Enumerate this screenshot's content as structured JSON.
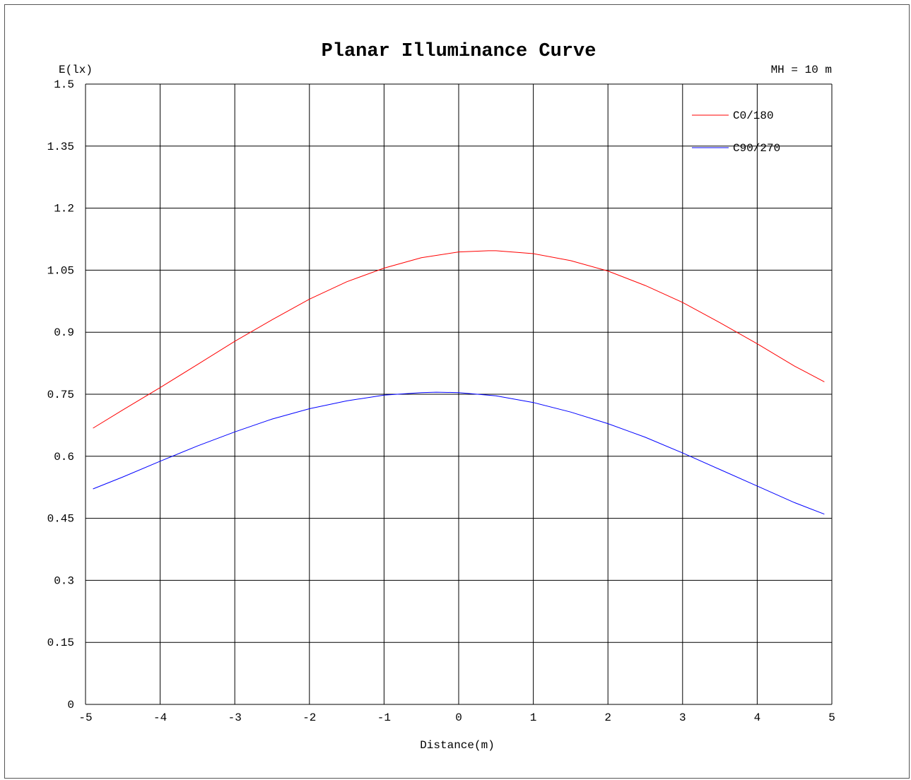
{
  "chart_data": {
    "type": "line",
    "title": "Planar Illuminance Curve",
    "xlabel": "Distance(m)",
    "ylabel": "E(lx)",
    "annotation": "MH = 10 m",
    "xlim": [
      -5,
      5
    ],
    "ylim": [
      0,
      1.5
    ],
    "x_ticks": [
      -5,
      -4,
      -3,
      -2,
      -1,
      0,
      1,
      2,
      3,
      4,
      5
    ],
    "y_ticks": [
      0,
      0.15,
      0.3,
      0.45,
      0.6,
      0.75,
      0.9,
      1.05,
      1.2,
      1.35,
      1.5
    ],
    "x_tick_labels": [
      "-5",
      "-4",
      "-3",
      "-2",
      "-1",
      "0",
      "1",
      "2",
      "3",
      "4",
      "5"
    ],
    "y_tick_labels": [
      "0",
      "0.15",
      "0.3",
      "0.45",
      "0.6",
      "0.75",
      "0.9",
      "1.05",
      "1.2",
      "1.35",
      "1.5"
    ],
    "grid": true,
    "legend_position": "top-right",
    "series": [
      {
        "name": "C0/180",
        "color": "#ff0000",
        "x": [
          -4.9,
          -4.5,
          -4,
          -3.5,
          -3,
          -2.5,
          -2,
          -1.5,
          -1,
          -0.5,
          0,
          0.4,
          0.5,
          1,
          1.5,
          2,
          2.5,
          3,
          3.5,
          4,
          4.5,
          4.9
        ],
        "y": [
          0.668,
          0.712,
          0.766,
          0.822,
          0.878,
          0.93,
          0.98,
          1.022,
          1.055,
          1.08,
          1.094,
          1.097,
          1.097,
          1.09,
          1.073,
          1.048,
          1.013,
          0.972,
          0.923,
          0.872,
          0.818,
          0.78
        ]
      },
      {
        "name": "C90/270",
        "color": "#0000ff",
        "x": [
          -4.9,
          -4.5,
          -4,
          -3.5,
          -3,
          -2.5,
          -2,
          -1.5,
          -1,
          -0.5,
          -0.3,
          0,
          0.5,
          1,
          1.5,
          2,
          2.5,
          3,
          3.5,
          4,
          4.5,
          4.9
        ],
        "y": [
          0.521,
          0.55,
          0.588,
          0.625,
          0.659,
          0.69,
          0.715,
          0.734,
          0.748,
          0.754,
          0.755,
          0.754,
          0.746,
          0.73,
          0.707,
          0.679,
          0.646,
          0.608,
          0.568,
          0.528,
          0.488,
          0.46
        ]
      }
    ]
  }
}
